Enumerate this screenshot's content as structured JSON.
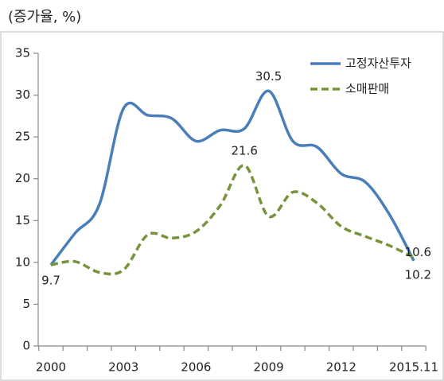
{
  "chart_data": {
    "type": "line",
    "subtitle": "(증가율, %)",
    "categories": [
      "2000",
      null,
      null,
      "2003",
      null,
      null,
      "2006",
      null,
      null,
      "2009",
      null,
      null,
      "2012",
      null,
      null,
      "2015.11"
    ],
    "series": [
      {
        "name": "고정자산투자",
        "color": "#4a7ebb",
        "dash": false,
        "values": [
          9.7,
          13.5,
          16.9,
          28.4,
          27.6,
          27.2,
          24.5,
          25.8,
          26.0,
          30.5,
          24.5,
          23.8,
          20.6,
          19.6,
          15.7,
          10.2
        ],
        "value_labels": [
          "9.7",
          null,
          null,
          null,
          null,
          null,
          null,
          null,
          null,
          "30.5",
          null,
          null,
          null,
          null,
          null,
          "10.2"
        ]
      },
      {
        "name": "소매판매",
        "color": "#77933c",
        "dash": true,
        "values": [
          9.7,
          10.1,
          8.8,
          9.1,
          13.3,
          12.9,
          13.7,
          16.8,
          21.6,
          15.5,
          18.4,
          17.1,
          14.3,
          13.1,
          12.0,
          10.6
        ],
        "value_labels": [
          null,
          null,
          null,
          null,
          null,
          null,
          null,
          null,
          "21.6",
          null,
          null,
          null,
          null,
          null,
          null,
          "10.6"
        ]
      }
    ],
    "ylim": [
      0,
      35
    ],
    "yticks": [
      0,
      5,
      10,
      15,
      20,
      25,
      30,
      35
    ],
    "grid": false,
    "legend": "top-right"
  }
}
